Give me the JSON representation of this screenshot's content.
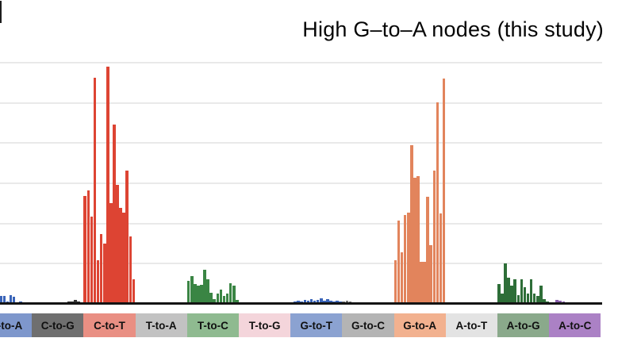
{
  "chart_data": {
    "type": "bar",
    "title": "High G–to–A nodes (this study)",
    "ylabel": "",
    "xlabel": "",
    "ylim": [
      0,
      0.32
    ],
    "grid": true,
    "gridline_values": [
      0.05,
      0.1,
      0.15,
      0.2,
      0.25,
      0.3
    ],
    "y_tick_labels_visible": false,
    "legend_position": "none",
    "axis_line_color": "#141414",
    "gridline_color": "#e9e9e9",
    "note_first_category_clipped_at_left_edge": true,
    "categories": [
      {
        "label": "C-to-A",
        "box_color": "#7e97cc",
        "bar_color": "#3a64b8",
        "values": [
          0.001,
          0.001,
          0.001,
          0.002,
          0.001,
          0.002,
          0.009,
          0.009,
          0.002,
          0.01,
          0.008,
          0.001,
          0.002,
          0.001,
          0.001,
          0.001
        ]
      },
      {
        "label": "C-to-G",
        "box_color": "#6f6f6f",
        "bar_color": "#333333",
        "values": [
          0.001,
          0.001,
          0.001,
          0.001,
          0.001,
          0.001,
          0.001,
          0.001,
          0.001,
          0.001,
          0.001,
          0.002,
          0.002,
          0.004,
          0.002,
          0.001
        ]
      },
      {
        "label": "C-to-T",
        "box_color": "#e98f83",
        "bar_color": "#dd4433",
        "values": [
          0.133,
          0.14,
          0.108,
          0.28,
          0.053,
          0.086,
          0.074,
          0.294,
          0.124,
          0.222,
          0.147,
          0.118,
          0.112,
          0.165,
          0.083,
          0.03
        ]
      },
      {
        "label": "T-to-A",
        "box_color": "#c2c2c2",
        "bar_color": "#888888",
        "values": [
          0.001,
          0.0,
          0.001,
          0.0,
          0.001,
          0.001,
          0.0,
          0.001,
          0.0,
          0.001,
          0.001,
          0.0,
          0.001,
          0.0,
          0.001,
          0.0
        ]
      },
      {
        "label": "T-to-C",
        "box_color": "#8fba90",
        "bar_color": "#3a8544",
        "values": [
          0.028,
          0.034,
          0.024,
          0.022,
          0.023,
          0.041,
          0.03,
          0.013,
          0.005,
          0.012,
          0.017,
          0.009,
          0.012,
          0.025,
          0.022,
          0.004
        ]
      },
      {
        "label": "T-to-G",
        "box_color": "#f4d5db",
        "bar_color": "#e8a0b4",
        "values": [
          0.0,
          0.001,
          0.0,
          0.001,
          0.0,
          0.001,
          0.001,
          0.0,
          0.001,
          0.0,
          0.001,
          0.0,
          0.001,
          0.001,
          0.0,
          0.001
        ]
      },
      {
        "label": "G-to-T",
        "box_color": "#8ba2d1",
        "bar_color": "#3a64b8",
        "values": [
          0.001,
          0.002,
          0.003,
          0.002,
          0.004,
          0.003,
          0.005,
          0.003,
          0.004,
          0.006,
          0.003,
          0.005,
          0.003,
          0.002,
          0.003,
          0.002
        ]
      },
      {
        "label": "G-to-C",
        "box_color": "#b4b4b4",
        "bar_color": "#777777",
        "values": [
          0.002,
          0.003,
          0.002,
          0.001,
          0.001,
          0.001,
          0.001,
          0.001,
          0.001,
          0.001,
          0.001,
          0.001,
          0.001,
          0.001,
          0.001,
          0.001
        ]
      },
      {
        "label": "G-to-A",
        "box_color": "#f2b18f",
        "bar_color": "#e2845c",
        "values": [
          0.053,
          0.103,
          0.063,
          0.11,
          0.112,
          0.196,
          0.156,
          0.158,
          0.051,
          0.051,
          0.132,
          0.072,
          0.165,
          0.25,
          0.111,
          0.279
        ]
      },
      {
        "label": "A-to-T",
        "box_color": "#e3e3e3",
        "bar_color": "#999999",
        "values": [
          0.001,
          0.0,
          0.001,
          0.0,
          0.001,
          0.0,
          0.001,
          0.001,
          0.0,
          0.001,
          0.0,
          0.001,
          0.0,
          0.001,
          0.0,
          0.001
        ]
      },
      {
        "label": "A-to-G",
        "box_color": "#8aa98b",
        "bar_color": "#2e6e38",
        "values": [
          0.024,
          0.012,
          0.049,
          0.032,
          0.022,
          0.03,
          0.01,
          0.03,
          0.02,
          0.012,
          0.03,
          0.012,
          0.009,
          0.022,
          0.005,
          0.002
        ]
      },
      {
        "label": "A-to-C",
        "box_color": "#ab81c5",
        "bar_color": "#8a5fae",
        "values": [
          0.001,
          0.001,
          0.004,
          0.003,
          0.002,
          0.001,
          0.001,
          0.001,
          0.0,
          0.0,
          0.001,
          0.0,
          0.001,
          0.0,
          0.0,
          0.001
        ]
      }
    ]
  }
}
